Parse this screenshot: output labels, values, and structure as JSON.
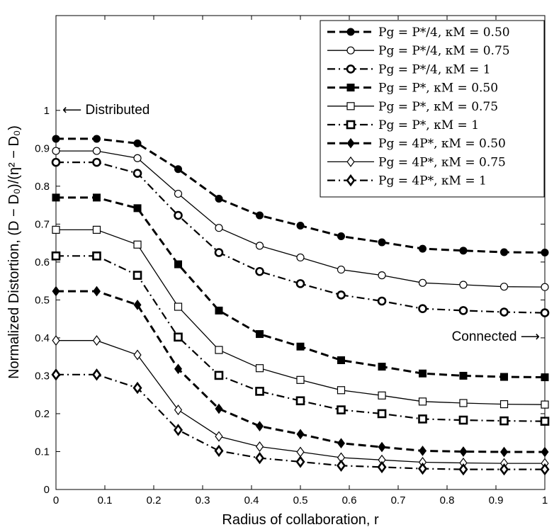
{
  "chart_data": {
    "type": "line",
    "title": "",
    "xlabel": "Radius of collaboration, r",
    "ylabel": "Normalized Distortion, (D − D₀)/(η² − D₀)",
    "xlim": [
      0,
      1
    ],
    "ylim": [
      0,
      1.25
    ],
    "xticks": [
      0,
      0.1,
      0.2,
      0.3,
      0.4,
      0.5,
      0.6,
      0.7,
      0.8,
      0.9,
      1
    ],
    "xtick_labels": [
      "0",
      "0.1",
      "0.2",
      "0.3",
      "0.4",
      "0.5",
      "0.6",
      "0.7",
      "0.8",
      "0.9",
      "1"
    ],
    "yticks": [
      0,
      0.1,
      0.2,
      0.3,
      0.4,
      0.5,
      0.6,
      0.7,
      0.8,
      0.9,
      1
    ],
    "ytick_labels": [
      "0",
      "0.1",
      "0.2",
      "0.3",
      "0.4",
      "0.5",
      "0.6",
      "0.7",
      "0.8",
      "0.9",
      "1"
    ],
    "x": [
      0,
      0.0833,
      0.1667,
      0.25,
      0.3333,
      0.4167,
      0.5,
      0.5833,
      0.6667,
      0.75,
      0.8333,
      0.9167,
      1
    ],
    "legend_position": "top-right",
    "series": [
      {
        "name": "Pg = P*/4, κM = 0.50",
        "marker": "circle-filled",
        "dash": "dashed",
        "values": [
          0.925,
          0.925,
          0.913,
          0.845,
          0.767,
          0.723,
          0.696,
          0.668,
          0.652,
          0.635,
          0.63,
          0.626,
          0.625
        ]
      },
      {
        "name": "Pg = P*/4, κM = 0.75",
        "marker": "circle-open",
        "dash": "solid",
        "values": [
          0.893,
          0.893,
          0.874,
          0.78,
          0.69,
          0.643,
          0.612,
          0.58,
          0.565,
          0.545,
          0.54,
          0.535,
          0.534
        ]
      },
      {
        "name": "Pg = P*/4, κM = 1",
        "marker": "circle-bold",
        "dash": "dashdot",
        "values": [
          0.863,
          0.863,
          0.834,
          0.723,
          0.625,
          0.575,
          0.543,
          0.513,
          0.497,
          0.477,
          0.472,
          0.468,
          0.466
        ]
      },
      {
        "name": "Pg = P*,   κM = 0.50",
        "marker": "square-filled",
        "dash": "dashed",
        "values": [
          0.77,
          0.77,
          0.742,
          0.594,
          0.472,
          0.41,
          0.377,
          0.341,
          0.324,
          0.306,
          0.3,
          0.297,
          0.296
        ]
      },
      {
        "name": "Pg = P*,   κM = 0.75",
        "marker": "square-open",
        "dash": "solid",
        "values": [
          0.685,
          0.685,
          0.646,
          0.482,
          0.368,
          0.32,
          0.289,
          0.262,
          0.248,
          0.232,
          0.228,
          0.225,
          0.224
        ]
      },
      {
        "name": "Pg = P*,   κM = 1",
        "marker": "square-bold",
        "dash": "dashdot",
        "values": [
          0.616,
          0.616,
          0.565,
          0.402,
          0.301,
          0.259,
          0.234,
          0.21,
          0.2,
          0.186,
          0.183,
          0.181,
          0.18
        ]
      },
      {
        "name": "Pg = 4P*,   κM = 0.50",
        "marker": "diamond-filled",
        "dash": "dashed",
        "values": [
          0.523,
          0.523,
          0.487,
          0.318,
          0.213,
          0.167,
          0.146,
          0.122,
          0.112,
          0.102,
          0.1,
          0.099,
          0.099
        ]
      },
      {
        "name": "Pg = 4P*,   κM = 0.75",
        "marker": "diamond-open",
        "dash": "solid",
        "values": [
          0.393,
          0.393,
          0.355,
          0.21,
          0.14,
          0.113,
          0.099,
          0.084,
          0.078,
          0.072,
          0.07,
          0.069,
          0.069
        ]
      },
      {
        "name": "Pg = 4P*,   κM = 1",
        "marker": "diamond-bold",
        "dash": "dashdot",
        "values": [
          0.303,
          0.303,
          0.268,
          0.157,
          0.102,
          0.083,
          0.073,
          0.063,
          0.059,
          0.055,
          0.053,
          0.053,
          0.053
        ]
      }
    ],
    "annotations": [
      {
        "text": "⟵ Distributed",
        "position": "top-left"
      },
      {
        "text": "Connected ⟶",
        "position": "right"
      }
    ]
  }
}
